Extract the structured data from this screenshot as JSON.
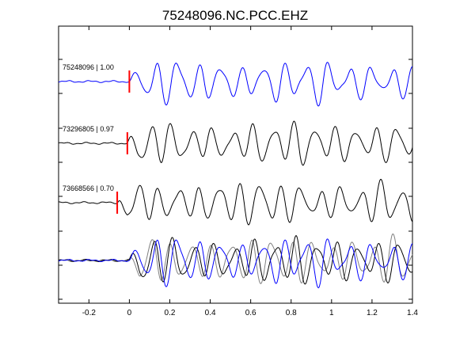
{
  "chart_data": {
    "type": "line",
    "title": "75248096.NC.PCC.EHZ",
    "xlabel": "",
    "ylabel": "",
    "xlim": [
      -0.35,
      1.4
    ],
    "x_ticks": [
      "-0.2",
      "0",
      "0.2",
      "0.4",
      "0.6",
      "0.8",
      "1",
      "1.2",
      "1.4"
    ],
    "x_tick_values": [
      -0.2,
      0,
      0.2,
      0.4,
      0.6,
      0.8,
      1.0,
      1.2,
      1.4
    ],
    "grid": false,
    "panels": [
      {
        "label": "75248096 | 1.00",
        "event_id": "75248096",
        "correlation": 1.0,
        "pick_time": 0.0,
        "color": "#0000ff"
      },
      {
        "label": "73296805 | 0.97",
        "event_id": "73296805",
        "correlation": 0.97,
        "pick_time": -0.01,
        "color": "#000000"
      },
      {
        "label": "73668566 | 0.70",
        "event_id": "73668566",
        "correlation": 0.7,
        "pick_time": -0.06,
        "color": "#000000"
      }
    ],
    "overlay": {
      "series_colors": [
        "#0000ff",
        "#000000",
        "#808080"
      ]
    },
    "pick_color": "#ff0000"
  }
}
